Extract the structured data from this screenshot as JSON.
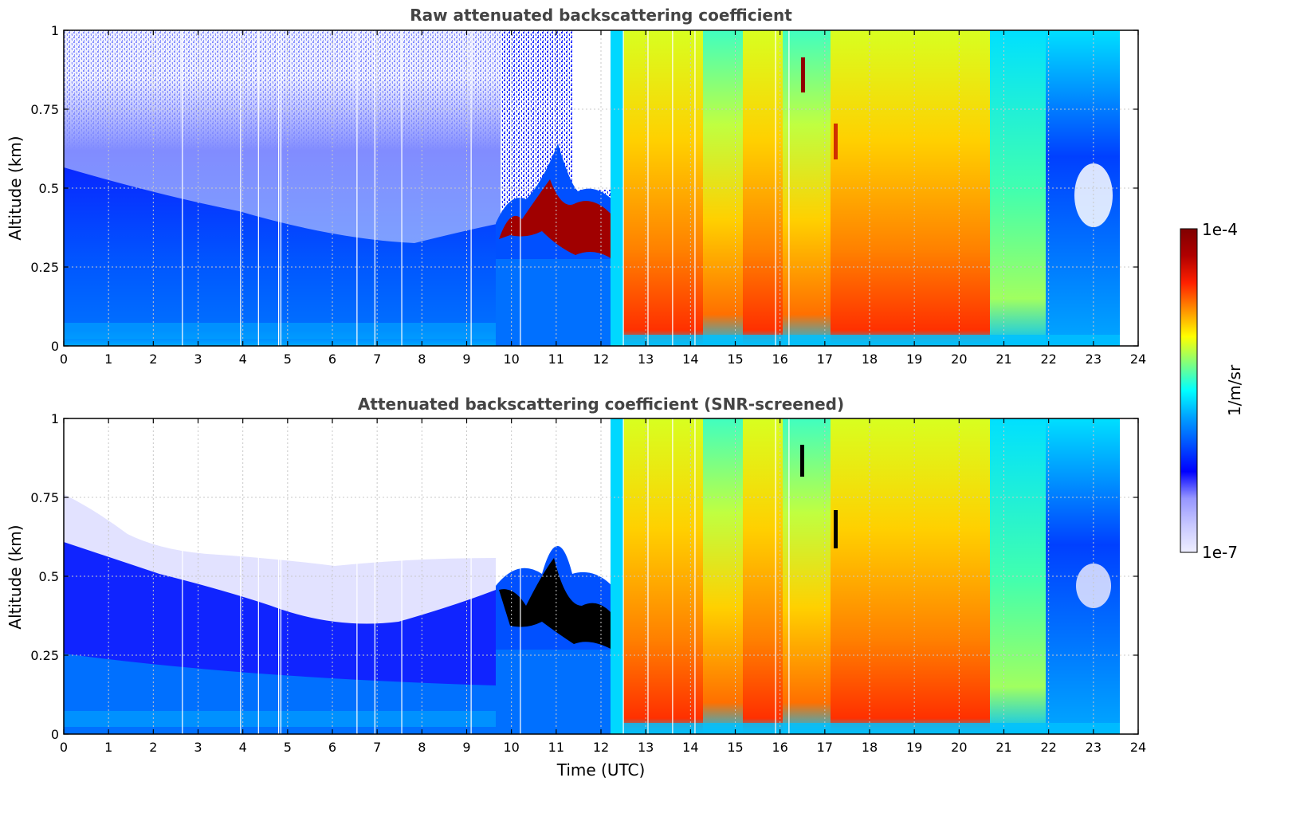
{
  "chart_data": [
    {
      "type": "heatmap",
      "title": "Raw attenuated backscattering coefficient",
      "xlabel": "",
      "ylabel": "Altitude (km)",
      "xlim": [
        0,
        24
      ],
      "ylim": [
        0,
        1
      ],
      "x_ticks": [
        "0",
        "1",
        "2",
        "3",
        "4",
        "5",
        "6",
        "7",
        "8",
        "9",
        "10",
        "11",
        "12",
        "13",
        "14",
        "15",
        "16",
        "17",
        "18",
        "19",
        "20",
        "21",
        "22",
        "23",
        "24"
      ],
      "y_ticks": [
        "0",
        "0.25",
        "0.5",
        "0.75",
        "1"
      ],
      "x_tick_values": [
        0,
        1,
        2,
        3,
        4,
        5,
        6,
        7,
        8,
        9,
        10,
        11,
        12,
        13,
        14,
        15,
        16,
        17,
        18,
        19,
        20,
        21,
        22,
        23,
        24
      ],
      "y_tick_values": [
        0,
        0.25,
        0.5,
        0.75,
        1
      ],
      "data_end_time": 23.6,
      "grid": true,
      "segments": [
        {
          "start": 0,
          "end": 9.6,
          "description": "low blue aerosol layer below ~0.5 km, sparse noisy signal above"
        },
        {
          "start": 9.6,
          "end": 12.3,
          "description": "intermittent low cloud, dark red around 0.3-0.5 km"
        },
        {
          "start": 12.3,
          "end": 23.6,
          "description": "high backscatter column, yellow to red, strongest near 18 UTC"
        }
      ]
    },
    {
      "type": "heatmap",
      "title": "Attenuated backscattering coefficient (SNR-screened)",
      "xlabel": "Time (UTC)",
      "ylabel": "Altitude (km)",
      "xlim": [
        0,
        24
      ],
      "ylim": [
        0,
        1
      ],
      "x_ticks": [
        "0",
        "1",
        "2",
        "3",
        "4",
        "5",
        "6",
        "7",
        "8",
        "9",
        "10",
        "11",
        "12",
        "13",
        "14",
        "15",
        "16",
        "17",
        "18",
        "19",
        "20",
        "21",
        "22",
        "23",
        "24"
      ],
      "y_ticks": [
        "0",
        "0.25",
        "0.5",
        "0.75",
        "1"
      ],
      "x_tick_values": [
        0,
        1,
        2,
        3,
        4,
        5,
        6,
        7,
        8,
        9,
        10,
        11,
        12,
        13,
        14,
        15,
        16,
        17,
        18,
        19,
        20,
        21,
        22,
        23,
        24
      ],
      "y_tick_values": [
        0,
        0.25,
        0.5,
        0.75,
        1
      ],
      "data_end_time": 23.6,
      "grid": true,
      "segments": [
        {
          "start": 0,
          "end": 9.6,
          "description": "screened: white above ~0.55 km, blue boundary layer below"
        },
        {
          "start": 9.6,
          "end": 12.3,
          "description": "saturated low cloud shown in black"
        },
        {
          "start": 12.3,
          "end": 23.6,
          "description": "high backscatter column, yellow to red"
        }
      ]
    }
  ],
  "colorbar": {
    "max_label": "1e-4",
    "min_label": "1e-7",
    "unit_label": "1/m/sr",
    "colors": [
      "#eeeeff",
      "#c8c8ff",
      "#9696ff",
      "#0000ff",
      "#0050ff",
      "#00a0ff",
      "#00ffff",
      "#7fff7f",
      "#ffff00",
      "#ff9000",
      "#ff2000",
      "#b00000",
      "#800000"
    ]
  }
}
